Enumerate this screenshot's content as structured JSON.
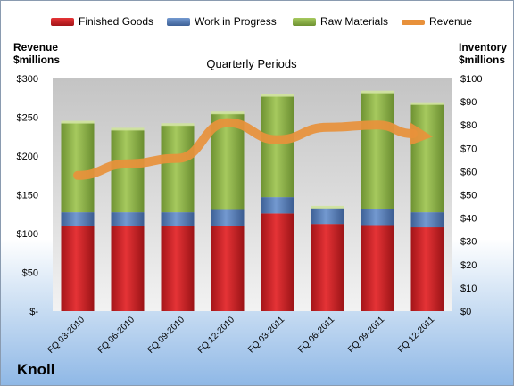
{
  "chart_data": {
    "type": "bar",
    "title": "Quarterly Periods",
    "company": "Knoll",
    "left_axis_label_line1": "Revenue",
    "left_axis_label_line2": "$millions",
    "right_axis_label_line1": "Inventory",
    "right_axis_label_line2": "$millions",
    "categories": [
      "FQ 03-2010",
      "FQ 06-2010",
      "FQ 09-2010",
      "FQ 12-2010",
      "FQ 03-2011",
      "FQ 06-2011",
      "FQ 09-2011",
      "FQ 12-2011"
    ],
    "left_ticks": [
      "$-",
      "$50",
      "$100",
      "$150",
      "$200",
      "$250",
      "$300"
    ],
    "right_ticks": [
      "$0",
      "$10",
      "$20",
      "$30",
      "$40",
      "$50",
      "$60",
      "$70",
      "$80",
      "$90",
      "$100"
    ],
    "left_ylim": [
      0,
      300
    ],
    "right_ylim": [
      0,
      100
    ],
    "grid": false,
    "legend_position": "top",
    "series": [
      {
        "name": "Finished Goods",
        "axis": "right",
        "kind": "stacked-bar",
        "color": "#d7262a",
        "values": [
          36.5,
          36.5,
          36.5,
          36.5,
          42,
          37.5,
          37,
          36
        ]
      },
      {
        "name": "Work in Progress",
        "axis": "right",
        "kind": "stacked-bar",
        "color": "#5b84c1",
        "values": [
          6,
          6,
          6,
          7,
          7,
          7,
          7,
          6.5
        ]
      },
      {
        "name": "Raw Materials",
        "axis": "right",
        "kind": "stacked-bar",
        "color": "#96bb4e",
        "values": [
          38.5,
          35.5,
          37.5,
          41.5,
          43.5,
          0,
          50,
          46.5
        ]
      },
      {
        "name": "Revenue",
        "axis": "left",
        "kind": "line",
        "color": "#e8913b",
        "values": [
          175,
          190,
          197,
          243,
          221,
          237,
          240,
          225
        ]
      }
    ]
  }
}
